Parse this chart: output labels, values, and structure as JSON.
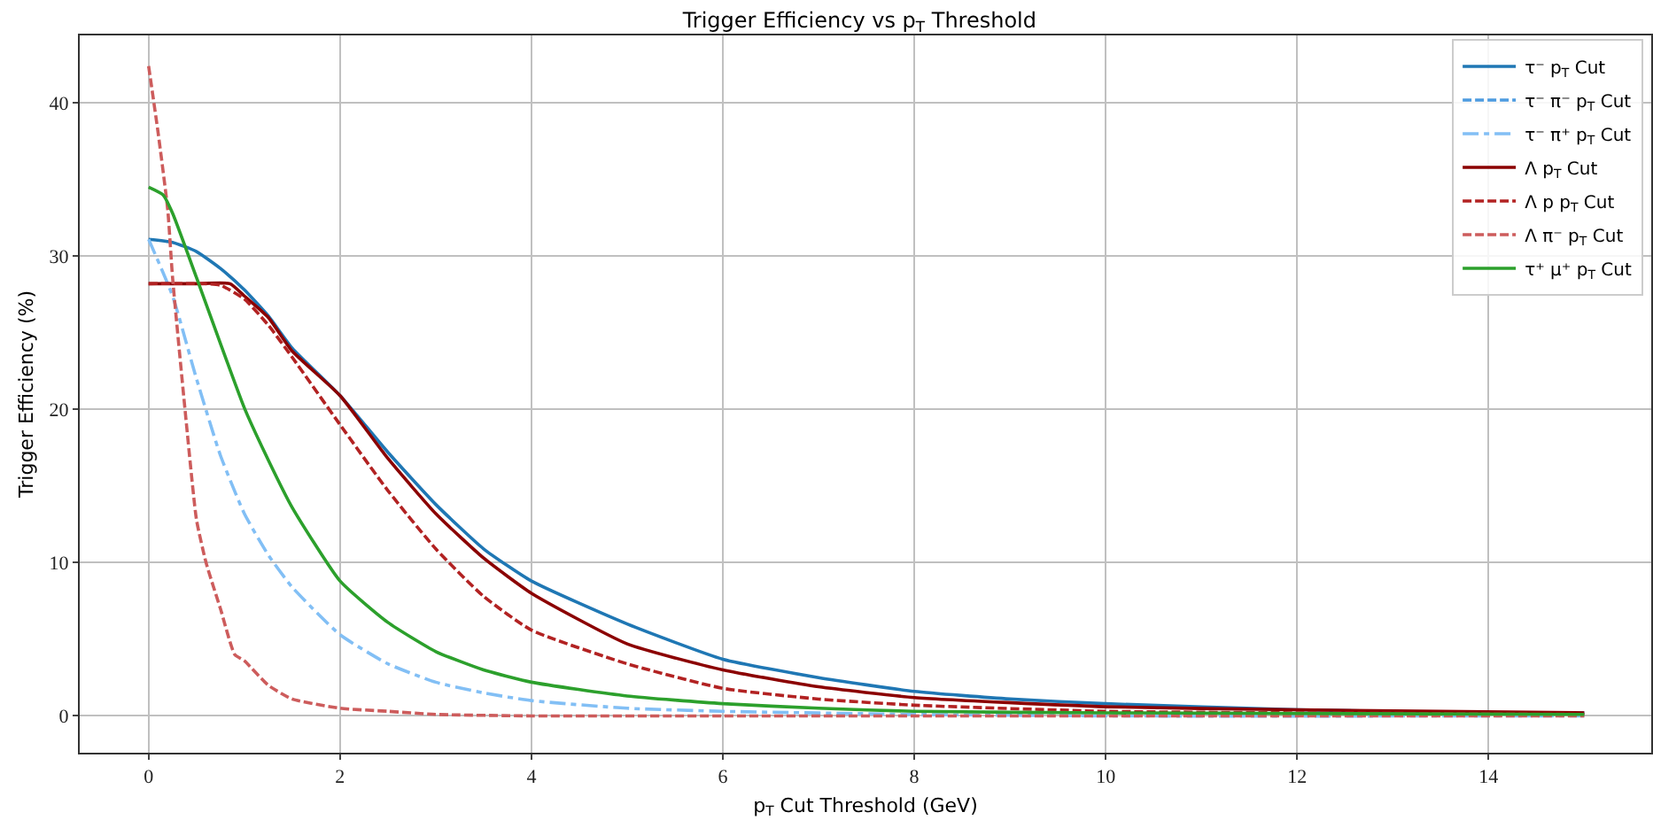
{
  "chart_data": {
    "type": "line",
    "title": "Trigger Efficiency vs p$_{T}$ Threshold",
    "xlabel": "p$_{T}$ Cut Threshold (GeV)",
    "ylabel": "Trigger Efficiency (%)",
    "xlim": [
      -0.72,
      15.7
    ],
    "ylim": [
      -2.4,
      44.4
    ],
    "xticks": [
      0,
      2,
      4,
      6,
      8,
      10,
      12,
      14
    ],
    "yticks": [
      0,
      10,
      20,
      30,
      40
    ],
    "grid": true,
    "legend": "top right",
    "marker": "none",
    "series": [
      {
        "name": "τ⁻ p$_{T}$ Cut",
        "color": "#1f77b4",
        "line_style": "solid",
        "x": [
          0,
          0.25,
          0.5,
          0.75,
          1,
          1.25,
          1.5,
          2,
          2.5,
          3,
          3.5,
          4,
          5,
          6,
          7,
          8,
          9,
          10,
          12,
          14,
          15
        ],
        "values": [
          31.1,
          30.9,
          30.3,
          29.2,
          27.8,
          26.1,
          24,
          20.9,
          17.2,
          13.8,
          10.9,
          8.8,
          6,
          3.7,
          2.5,
          1.6,
          1.1,
          0.8,
          0.4,
          0.2,
          0.2
        ]
      },
      {
        "name": "τ⁻ π⁻ p$_{T}$ Cut",
        "color": "#4c9be0",
        "line_style": "dashed",
        "values": [
          null
        ]
      },
      {
        "name": "τ⁻ π⁺ p$_{T}$ Cut",
        "color": "#82bff5",
        "line_style": "dashdot",
        "x": [
          0,
          0.25,
          0.5,
          0.75,
          1,
          1.25,
          1.5,
          2,
          2.5,
          3,
          3.5,
          4,
          5,
          6,
          8,
          10,
          15
        ],
        "values": [
          31.1,
          27.4,
          22,
          17,
          13.2,
          10.5,
          8.4,
          5.3,
          3.4,
          2.2,
          1.5,
          1,
          0.5,
          0.3,
          0.1,
          0,
          0
        ]
      },
      {
        "name": "Λ p$_{T}$ Cut",
        "color": "#8b0000",
        "line_style": "solid",
        "x": [
          0,
          0.5,
          0.85,
          1,
          1.25,
          1.5,
          2,
          2.5,
          3,
          3.5,
          4,
          5,
          6,
          7,
          8,
          10,
          12,
          15
        ],
        "values": [
          28.2,
          28.2,
          28.2,
          27.4,
          26,
          23.8,
          20.9,
          16.8,
          13.2,
          10.3,
          8,
          4.7,
          3,
          1.9,
          1.2,
          0.6,
          0.4,
          0.2
        ]
      },
      {
        "name": "Λ p p$_{T}$ Cut",
        "color": "#b22222",
        "line_style": "dashed",
        "x": [
          0,
          0.6,
          0.75,
          1,
          1.25,
          1.5,
          2,
          2.5,
          3,
          3.5,
          4,
          5,
          6,
          7,
          8,
          10,
          12,
          15
        ],
        "values": [
          28.2,
          28.2,
          28.1,
          27.2,
          25.5,
          23.4,
          19,
          14.7,
          10.9,
          7.8,
          5.6,
          3.4,
          1.8,
          1.1,
          0.7,
          0.3,
          0.2,
          0.1
        ]
      },
      {
        "name": "Λ π⁻ p$_{T}$ Cut",
        "color": "#cd5c5c",
        "line_style": "dashed",
        "x": [
          0,
          0.1,
          0.2,
          0.25,
          0.38,
          0.5,
          0.6,
          0.75,
          0.9,
          1,
          1.25,
          1.5,
          2,
          2.5,
          3,
          4,
          6,
          15
        ],
        "values": [
          42.4,
          38,
          33,
          28.6,
          20,
          12.8,
          10,
          7,
          4,
          3.6,
          2,
          1.1,
          0.5,
          0.3,
          0.1,
          0,
          0,
          0
        ]
      },
      {
        "name": "τ⁺ μ⁺ p$_{T}$ Cut",
        "color": "#2ca02c",
        "line_style": "solid",
        "x": [
          0,
          0.15,
          0.25,
          0.5,
          0.75,
          1,
          1.25,
          1.5,
          2,
          2.5,
          3,
          3.5,
          4,
          5,
          6,
          7,
          8,
          10,
          15
        ],
        "values": [
          34.5,
          34,
          32.8,
          28.6,
          24.3,
          20.1,
          16.7,
          13.6,
          8.8,
          6.1,
          4.2,
          3,
          2.2,
          1.3,
          0.8,
          0.5,
          0.3,
          0.2,
          0.1
        ]
      }
    ]
  }
}
